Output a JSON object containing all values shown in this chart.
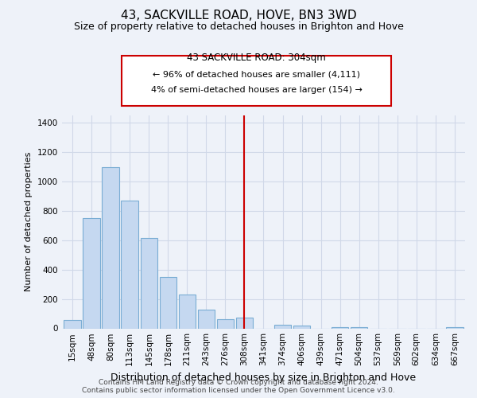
{
  "title": "43, SACKVILLE ROAD, HOVE, BN3 3WD",
  "subtitle": "Size of property relative to detached houses in Brighton and Hove",
  "xlabel": "Distribution of detached houses by size in Brighton and Hove",
  "ylabel": "Number of detached properties",
  "bar_labels": [
    "15sqm",
    "48sqm",
    "80sqm",
    "113sqm",
    "145sqm",
    "178sqm",
    "211sqm",
    "243sqm",
    "276sqm",
    "308sqm",
    "341sqm",
    "374sqm",
    "406sqm",
    "439sqm",
    "471sqm",
    "504sqm",
    "537sqm",
    "569sqm",
    "602sqm",
    "634sqm",
    "667sqm"
  ],
  "bar_values": [
    55,
    750,
    1100,
    870,
    615,
    350,
    230,
    130,
    65,
    75,
    0,
    25,
    20,
    0,
    10,
    10,
    0,
    0,
    0,
    0,
    10
  ],
  "bar_color": "#c5d8f0",
  "bar_edge_color": "#7aadd4",
  "property_line_x_label": "308sqm",
  "property_line_label": "43 SACKVILLE ROAD: 304sqm",
  "annotation_line1": "← 96% of detached houses are smaller (4,111)",
  "annotation_line2": "4% of semi-detached houses are larger (154) →",
  "vline_color": "#cc0000",
  "ylim": [
    0,
    1450
  ],
  "yticks": [
    0,
    200,
    400,
    600,
    800,
    1000,
    1200,
    1400
  ],
  "footer_line1": "Contains HM Land Registry data © Crown copyright and database right 2024.",
  "footer_line2": "Contains public sector information licensed under the Open Government Licence v3.0.",
  "bg_color": "#eef2f9",
  "grid_color": "#d0d8e8",
  "title_fontsize": 11,
  "subtitle_fontsize": 9,
  "xlabel_fontsize": 9,
  "ylabel_fontsize": 8,
  "tick_fontsize": 7.5,
  "footer_fontsize": 6.5
}
